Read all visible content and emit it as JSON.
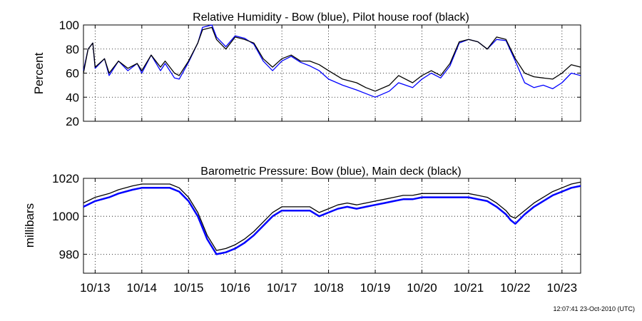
{
  "x_ticks": [
    "10/13",
    "10/14",
    "10/15",
    "10/16",
    "10/17",
    "10/18",
    "10/19",
    "10/20",
    "10/21",
    "10/22",
    "10/23"
  ],
  "footer": "12:07:41 23-Oct-2010 (UTC)",
  "chart_data": [
    {
      "type": "line",
      "title": "Relative Humidity - Bow (blue), Pilot house roof (black)",
      "xlabel": "",
      "ylabel": "Percent",
      "ylim": [
        20,
        100
      ],
      "yticks": [
        20,
        40,
        60,
        80,
        100
      ],
      "xlim": [
        12.75,
        23.4
      ],
      "grid": true,
      "colors": {
        "bow": "#0000ff",
        "roof": "#000000"
      },
      "x": [
        12.75,
        12.85,
        12.95,
        13.0,
        13.2,
        13.3,
        13.5,
        13.7,
        13.9,
        14.0,
        14.2,
        14.4,
        14.5,
        14.7,
        14.8,
        15.0,
        15.2,
        15.3,
        15.5,
        15.6,
        15.8,
        16.0,
        16.2,
        16.4,
        16.6,
        16.8,
        17.0,
        17.2,
        17.4,
        17.6,
        17.8,
        18.0,
        18.3,
        18.6,
        18.8,
        19.0,
        19.3,
        19.5,
        19.8,
        20.0,
        20.2,
        20.4,
        20.6,
        20.8,
        21.0,
        21.2,
        21.4,
        21.6,
        21.8,
        22.0,
        22.2,
        22.4,
        22.6,
        22.8,
        23.0,
        23.2,
        23.4
      ],
      "series": [
        {
          "values": [
            60,
            80,
            85,
            65,
            72,
            60,
            70,
            64,
            68,
            62,
            75,
            65,
            70,
            60,
            58,
            70,
            85,
            96,
            98,
            88,
            80,
            90,
            88,
            85,
            72,
            65,
            72,
            75,
            70,
            70,
            67,
            62,
            55,
            52,
            48,
            45,
            50,
            58,
            52,
            58,
            62,
            58,
            68,
            86,
            88,
            86,
            80,
            90,
            88,
            72,
            60,
            57,
            56,
            55,
            60,
            67,
            65
          ]
        },
        {
          "values": [
            62,
            80,
            85,
            64,
            72,
            58,
            70,
            62,
            68,
            60,
            75,
            62,
            68,
            56,
            55,
            69,
            85,
            98,
            100,
            90,
            82,
            91,
            89,
            84,
            70,
            62,
            70,
            74,
            69,
            66,
            62,
            55,
            50,
            46,
            43,
            40,
            45,
            52,
            48,
            55,
            60,
            56,
            66,
            85,
            88,
            86,
            80,
            88,
            87,
            70,
            52,
            48,
            50,
            47,
            52,
            60,
            58
          ]
        }
      ]
    },
    {
      "type": "line",
      "title": "Barometric Pressure: Bow (blue), Main deck (black)",
      "xlabel": "",
      "ylabel": "millibars",
      "ylim": [
        970,
        1020
      ],
      "yticks": [
        980,
        1000,
        1020
      ],
      "xlim": [
        12.75,
        23.4
      ],
      "grid": true,
      "colors": {
        "bow": "#0000ff",
        "deck": "#000000"
      },
      "x": [
        12.75,
        13.0,
        13.3,
        13.5,
        13.8,
        14.0,
        14.3,
        14.6,
        14.8,
        15.0,
        15.2,
        15.4,
        15.6,
        15.8,
        16.0,
        16.2,
        16.4,
        16.6,
        16.8,
        17.0,
        17.2,
        17.4,
        17.6,
        17.8,
        18.0,
        18.2,
        18.4,
        18.6,
        18.8,
        19.0,
        19.2,
        19.4,
        19.6,
        19.8,
        20.0,
        20.2,
        20.4,
        20.6,
        20.8,
        21.0,
        21.2,
        21.4,
        21.6,
        21.8,
        21.9,
        22.0,
        22.2,
        22.4,
        22.6,
        22.8,
        23.0,
        23.2,
        23.4
      ],
      "series": [
        {
          "values": [
            1007,
            1010,
            1012,
            1014,
            1016,
            1017,
            1017,
            1017,
            1015,
            1010,
            1002,
            990,
            982,
            983,
            985,
            988,
            992,
            997,
            1002,
            1005,
            1005,
            1005,
            1005,
            1002,
            1004,
            1006,
            1007,
            1006,
            1007,
            1008,
            1009,
            1010,
            1011,
            1011,
            1012,
            1012,
            1012,
            1012,
            1012,
            1012,
            1011,
            1010,
            1007,
            1003,
            1000,
            999,
            1003,
            1007,
            1010,
            1013,
            1015,
            1017,
            1018
          ]
        },
        {
          "values": [
            1005,
            1008,
            1010,
            1012,
            1014,
            1015,
            1015,
            1015,
            1013,
            1008,
            1000,
            988,
            980,
            981,
            983,
            986,
            990,
            995,
            1000,
            1003,
            1003,
            1003,
            1003,
            1000,
            1002,
            1004,
            1005,
            1004,
            1005,
            1006,
            1007,
            1008,
            1009,
            1009,
            1010,
            1010,
            1010,
            1010,
            1010,
            1010,
            1009,
            1008,
            1005,
            1001,
            998,
            996,
            1001,
            1005,
            1008,
            1011,
            1013,
            1015,
            1016
          ]
        }
      ]
    }
  ]
}
